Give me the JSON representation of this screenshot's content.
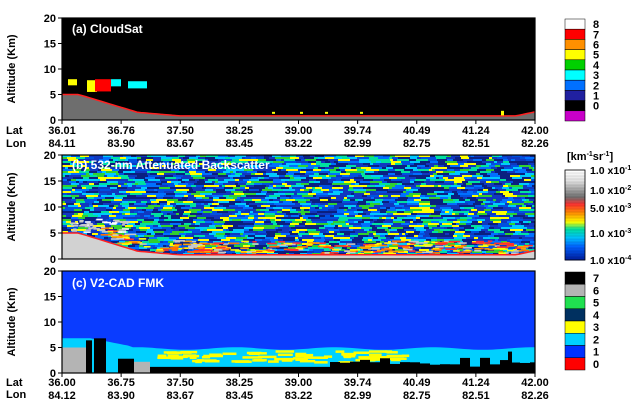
{
  "chart_data": [
    {
      "type": "heatmap",
      "title": "(a) CloudSat",
      "ylabel": "Altitude (Km)",
      "ylim": [
        0,
        20
      ],
      "yticks": [
        0,
        5,
        10,
        15,
        20
      ],
      "lat_label": "Lat",
      "lon_label": "Lon",
      "x_lat": [
        "36.01",
        "36.76",
        "37.50",
        "38.25",
        "39.00",
        "39.74",
        "40.49",
        "41.24",
        "42.00"
      ],
      "x_lon": [
        "84.11",
        "83.90",
        "83.67",
        "83.45",
        "83.22",
        "82.99",
        "82.75",
        "82.51",
        "82.26"
      ],
      "colorbar_labels": [
        "8",
        "7",
        "6",
        "5",
        "4",
        "3",
        "2",
        "1",
        "0"
      ],
      "colorbar_colors": [
        "#ffffff",
        "#ff0000",
        "#ff9000",
        "#ffff00",
        "#00d000",
        "#00ffff",
        "#0070ff",
        "#2020a0",
        "#000000",
        "#c800c8"
      ],
      "background_color": "#000000",
      "surface_color": "#6e6e6e"
    },
    {
      "type": "heatmap",
      "title": "(b) 532-nm Attenuated Backscatter",
      "ylabel": "Altitude (Km)",
      "ylim": [
        0,
        20
      ],
      "yticks": [
        0,
        5,
        10,
        15,
        20
      ],
      "colorbar_title": "[km-1sr-1]",
      "colorbar_labels": [
        "1.0 x10-1",
        "1.0 x10-2",
        "5.0 x10-3",
        "1.0 x10-3",
        "1.0 x10-4"
      ],
      "colorbar_colors": [
        "#ffffff",
        "#d0d0d0",
        "#909090",
        "#ff3030",
        "#ffa000",
        "#ffff00",
        "#00e0a0",
        "#00c0ff",
        "#0060ff",
        "#0020a0"
      ],
      "surface_color": "#d2d2d2"
    },
    {
      "type": "heatmap",
      "title": "(c) V2-CAD FMK",
      "ylabel": "Altitude (Km)",
      "ylim": [
        0,
        20
      ],
      "yticks": [
        0,
        5,
        10,
        15,
        20
      ],
      "lat_label": "Lat",
      "lon_label": "Lon",
      "x_lat": [
        "36.00",
        "36.75",
        "37.50",
        "38.25",
        "39.00",
        "39.74",
        "40.49",
        "41.24",
        "42.00"
      ],
      "x_lon": [
        "84.12",
        "83.90",
        "83.67",
        "83.45",
        "83.22",
        "82.99",
        "82.75",
        "82.51",
        "82.26"
      ],
      "colorbar_labels": [
        "7",
        "6",
        "5",
        "4",
        "3",
        "2",
        "1",
        "0"
      ],
      "colorbar_colors": [
        "#000000",
        "#b4b4b4",
        "#20e050",
        "#003060",
        "#ffff00",
        "#00d0ff",
        "#0030ff",
        "#ff0000"
      ],
      "background_color": "#0a3cff"
    }
  ],
  "colors": {
    "text": "#000000",
    "panel_title": "#ffffff",
    "surface_line": "#ff2020"
  }
}
